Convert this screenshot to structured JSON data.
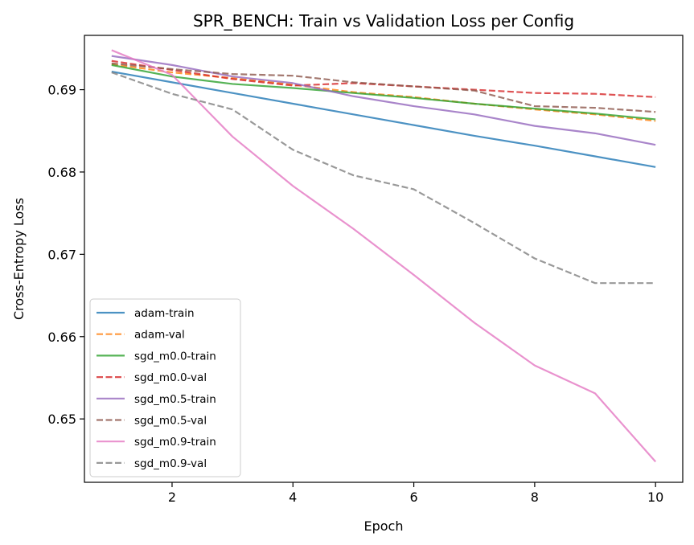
{
  "chart_data": {
    "type": "line",
    "title": "SPR_BENCH: Train vs Validation Loss per Config",
    "xlabel": "Epoch",
    "ylabel": "Cross-Entropy Loss",
    "xlim": [
      0.55,
      10.45
    ],
    "ylim": [
      0.6423,
      0.6966
    ],
    "xticks": [
      2,
      4,
      6,
      8,
      10
    ],
    "yticks": [
      0.65,
      0.66,
      0.67,
      0.68,
      0.69
    ],
    "xtick_labels": [
      "2",
      "4",
      "6",
      "8",
      "10"
    ],
    "ytick_labels": [
      "0.65",
      "0.66",
      "0.67",
      "0.68",
      "0.69"
    ],
    "legend_position": "lower-left",
    "grid": false,
    "x": [
      1,
      2,
      3,
      4,
      5,
      6,
      7,
      8,
      9,
      10
    ],
    "series": [
      {
        "name": "adam-train",
        "color": "#1f77b4",
        "dash": "solid",
        "values": [
          0.6922,
          0.6909,
          0.6896,
          0.6883,
          0.687,
          0.6857,
          0.6844,
          0.6832,
          0.6819,
          0.6806
        ]
      },
      {
        "name": "adam-val",
        "color": "#ff7f0e",
        "dash": "dashed",
        "values": [
          0.6931,
          0.6921,
          0.6914,
          0.6906,
          0.6897,
          0.6891,
          0.6883,
          0.6876,
          0.687,
          0.6862
        ]
      },
      {
        "name": "sgd_m0.0-train",
        "color": "#2ca02c",
        "dash": "solid",
        "values": [
          0.693,
          0.6916,
          0.6907,
          0.6902,
          0.6896,
          0.689,
          0.6883,
          0.6877,
          0.6871,
          0.6864
        ]
      },
      {
        "name": "sgd_m0.0-val",
        "color": "#d62728",
        "dash": "dashed",
        "values": [
          0.6935,
          0.6924,
          0.6913,
          0.6905,
          0.6908,
          0.6904,
          0.69,
          0.6896,
          0.6895,
          0.6891
        ]
      },
      {
        "name": "sgd_m0.5-train",
        "color": "#9467bd",
        "dash": "solid",
        "values": [
          0.6941,
          0.693,
          0.6916,
          0.6908,
          0.6892,
          0.688,
          0.687,
          0.6856,
          0.6847,
          0.6833
        ]
      },
      {
        "name": "sgd_m0.5-val",
        "color": "#8c564b",
        "dash": "dashed",
        "values": [
          0.6932,
          0.6925,
          0.6919,
          0.6917,
          0.6909,
          0.6904,
          0.6899,
          0.688,
          0.6878,
          0.6873
        ]
      },
      {
        "name": "sgd_m0.9-train",
        "color": "#e377c2",
        "dash": "solid",
        "values": [
          0.6948,
          0.6918,
          0.6843,
          0.6783,
          0.6731,
          0.6675,
          0.6617,
          0.6565,
          0.6531,
          0.6448
        ]
      },
      {
        "name": "sgd_m0.9-val",
        "color": "#7f7f7f",
        "dash": "dashed",
        "values": [
          0.6921,
          0.6895,
          0.6876,
          0.6827,
          0.6796,
          0.6779,
          0.6738,
          0.6695,
          0.6665,
          0.6665
        ]
      }
    ]
  }
}
